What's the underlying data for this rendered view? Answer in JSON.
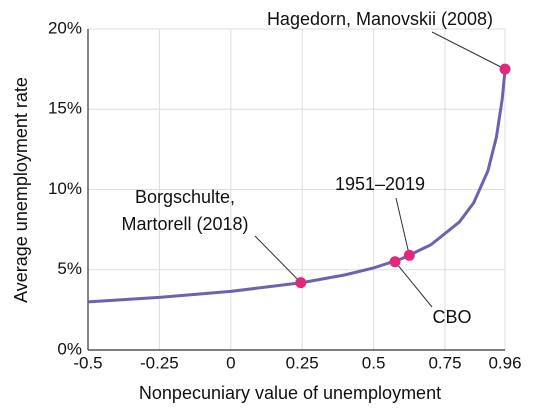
{
  "chart_data": {
    "type": "line",
    "xlabel": "Nonpecuniary value of unemployment",
    "ylabel": "Average unemployment rate",
    "x": [
      -0.5,
      -0.25,
      0,
      0.25,
      0.4,
      0.5,
      0.6,
      0.7,
      0.8,
      0.85,
      0.9,
      0.93,
      0.95,
      0.96
    ],
    "series": [
      {
        "color": "#6b62b0",
        "values": [
          3.0,
          3.28,
          3.65,
          4.2,
          4.68,
          5.11,
          5.7,
          6.55,
          7.97,
          9.16,
          11.15,
          13.27,
          15.6,
          17.4
        ]
      }
    ],
    "points": [
      {
        "x": 0.245,
        "y": 4.2,
        "label": [
          "Borgschulte,",
          "Martorell (2018)"
        ]
      },
      {
        "x": 0.575,
        "y": 5.5,
        "label": [
          "CBO"
        ]
      },
      {
        "x": 0.625,
        "y": 5.9,
        "label": [
          "1951–2019"
        ]
      },
      {
        "x": 0.96,
        "y": 17.5,
        "label": [
          "Hagedorn, Manovskii (2008)"
        ]
      }
    ],
    "point_color": "#e0287d",
    "xlim": [
      -0.5,
      0.96
    ],
    "ylim": [
      0,
      20
    ],
    "xticks": [
      -0.5,
      -0.25,
      0,
      0.25,
      0.5,
      0.75,
      0.96
    ],
    "yticks": [
      {
        "value": 0,
        "label": "0%"
      },
      {
        "value": 5,
        "label": "5%"
      },
      {
        "value": 10,
        "label": "10%"
      },
      {
        "value": 15,
        "label": "15%"
      },
      {
        "value": 20,
        "label": "20%"
      }
    ],
    "grid": true
  }
}
